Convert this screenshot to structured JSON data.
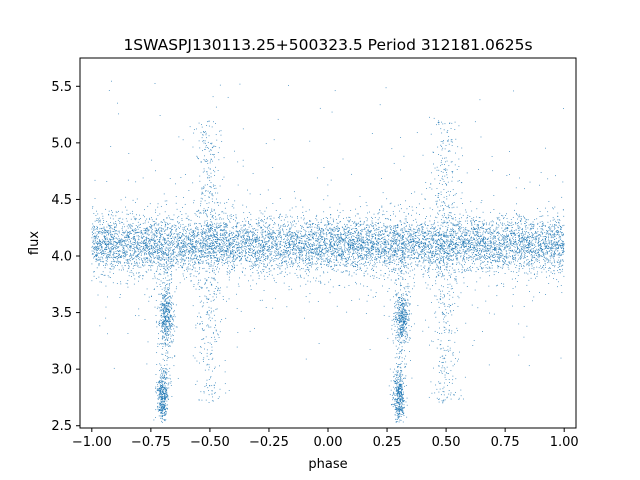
{
  "chart_data": {
    "type": "scatter",
    "title": "1SWASPJ130113.25+500323.5 Period 312181.0625s",
    "xlabel": "phase",
    "ylabel": "flux",
    "xlim": [
      -1.05,
      1.05
    ],
    "ylim": [
      2.48,
      5.75
    ],
    "x_ticks": [
      -1.0,
      -0.75,
      -0.5,
      -0.25,
      0.0,
      0.25,
      0.5,
      0.75,
      1.0
    ],
    "x_tick_labels": [
      "−1.00",
      "−0.75",
      "−0.50",
      "−0.25",
      "0.00",
      "0.25",
      "0.50",
      "0.75",
      "1.00"
    ],
    "y_ticks": [
      2.5,
      3.0,
      3.5,
      4.0,
      4.5,
      5.0,
      5.5
    ],
    "y_tick_labels": [
      "2.5",
      "3.0",
      "3.5",
      "4.0",
      "4.5",
      "5.0",
      "5.5"
    ],
    "grid": false,
    "marker_color": "#1f77b4",
    "series": [
      {
        "baseline_flux": 4.1,
        "scatter_sd": 0.12,
        "phase_range": [
          -1.0,
          1.0
        ],
        "dips": [
          {
            "phase": -0.7,
            "min_flux": 2.75,
            "shoulder_flux": 3.45
          },
          {
            "phase": 0.3,
            "min_flux": 2.75,
            "shoulder_flux": 3.45
          }
        ],
        "tails": [
          {
            "phase": -0.5,
            "flux_range": [
              2.7,
              5.2
            ]
          },
          {
            "phase": 0.5,
            "flux_range": [
              2.7,
              5.2
            ]
          }
        ]
      }
    ]
  }
}
